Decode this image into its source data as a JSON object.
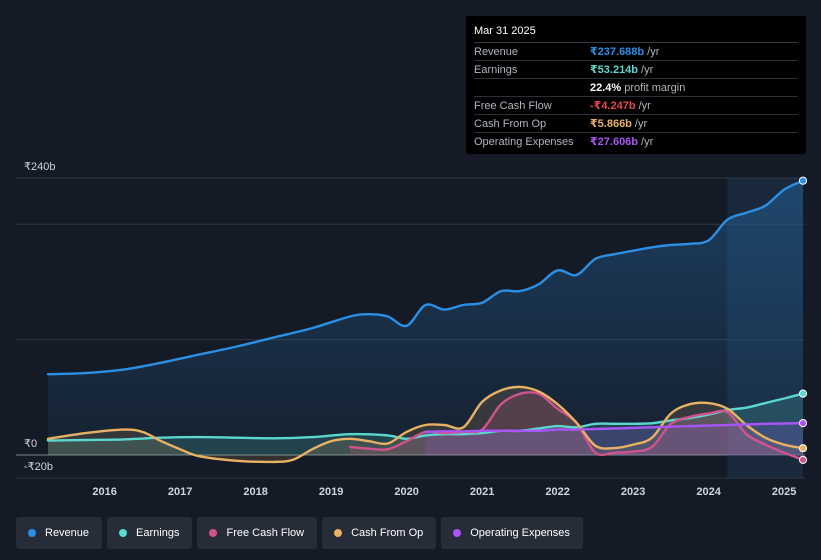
{
  "chart_data": {
    "type": "area",
    "currency_unit": "b",
    "y_labels": [
      {
        "value": 240,
        "label": "₹240b"
      },
      {
        "value": 0,
        "label": "₹0"
      },
      {
        "value": -20,
        "label": "-₹20b"
      }
    ],
    "ylim": [
      -20,
      240
    ],
    "xlim": [
      2015.25,
      2025.25
    ],
    "x_ticks": [
      {
        "value": 2016,
        "label": "2016"
      },
      {
        "value": 2017,
        "label": "2017"
      },
      {
        "value": 2018,
        "label": "2018"
      },
      {
        "value": 2019,
        "label": "2019"
      },
      {
        "value": 2020,
        "label": "2020"
      },
      {
        "value": 2021,
        "label": "2021"
      },
      {
        "value": 2022,
        "label": "2022"
      },
      {
        "value": 2023,
        "label": "2023"
      },
      {
        "value": 2024,
        "label": "2024"
      },
      {
        "value": 2025,
        "label": "2025"
      }
    ],
    "highlight_start": 2024.25,
    "series": [
      {
        "name": "Revenue",
        "color": "#2b8fe6",
        "x": [
          2015.25,
          2015.75,
          2016.25,
          2016.75,
          2017.25,
          2017.75,
          2018.25,
          2018.75,
          2019.25,
          2019.5,
          2019.75,
          2020.0,
          2020.25,
          2020.5,
          2020.75,
          2021.0,
          2021.25,
          2021.5,
          2021.75,
          2022.0,
          2022.25,
          2022.5,
          2022.75,
          2023.0,
          2023.25,
          2023.5,
          2023.75,
          2024.0,
          2024.25,
          2024.5,
          2024.75,
          2025.0,
          2025.25
        ],
        "y": [
          70,
          71,
          74,
          80,
          87,
          94,
          102,
          110,
          120,
          122,
          120,
          112,
          130,
          126,
          130,
          132,
          142,
          142,
          148,
          160,
          156,
          170,
          174,
          177,
          180,
          182,
          183,
          186,
          204,
          210,
          216,
          230,
          237.688
        ]
      },
      {
        "name": "Earnings",
        "color": "#5ad8cf",
        "x": [
          2015.25,
          2015.75,
          2016.25,
          2016.75,
          2017.25,
          2017.75,
          2018.25,
          2018.75,
          2019.25,
          2019.75,
          2020.0,
          2020.25,
          2020.5,
          2020.75,
          2021.0,
          2021.25,
          2021.5,
          2021.75,
          2022.0,
          2022.25,
          2022.5,
          2022.75,
          2023.0,
          2023.25,
          2023.5,
          2023.75,
          2024.0,
          2024.25,
          2024.5,
          2024.75,
          2025.0,
          2025.25
        ],
        "y": [
          12.5,
          13,
          13.5,
          15,
          15.5,
          15,
          14.5,
          15.5,
          18,
          17,
          14,
          17,
          18,
          18,
          19,
          21,
          21,
          23,
          25,
          24,
          27,
          27,
          27,
          27.5,
          30,
          32,
          35,
          39,
          41,
          45,
          49,
          53.214
        ]
      },
      {
        "name": "Free Cash Flow",
        "color": "#d1538e",
        "x": [
          2019.25,
          2019.5,
          2019.75,
          2020.0,
          2020.25,
          2020.5,
          2020.75,
          2021.0,
          2021.25,
          2021.5,
          2021.75,
          2022.0,
          2022.25,
          2022.5,
          2022.75,
          2023.0,
          2023.25,
          2023.5,
          2023.75,
          2024.0,
          2024.25,
          2024.5,
          2024.75,
          2025.0,
          2025.25
        ],
        "y": [
          7,
          5.5,
          5,
          12,
          20,
          19,
          20,
          22,
          44,
          53,
          53,
          40,
          28,
          2,
          2,
          3,
          7,
          27,
          33,
          36,
          37,
          18,
          9,
          2,
          -4.247
        ]
      },
      {
        "name": "Cash From Op",
        "color": "#e8b163",
        "x": [
          2015.25,
          2015.75,
          2016.25,
          2016.5,
          2016.75,
          2017.0,
          2017.25,
          2017.75,
          2018.25,
          2018.5,
          2018.75,
          2019.0,
          2019.25,
          2019.5,
          2019.75,
          2020.0,
          2020.25,
          2020.5,
          2020.75,
          2021.0,
          2021.25,
          2021.5,
          2021.75,
          2022.0,
          2022.25,
          2022.5,
          2022.75,
          2023.0,
          2023.25,
          2023.5,
          2023.75,
          2024.0,
          2024.25,
          2024.5,
          2024.75,
          2025.0,
          2025.25
        ],
        "y": [
          14,
          19,
          22,
          20,
          12,
          5,
          -1,
          -5,
          -6,
          -4,
          5,
          12,
          14,
          12,
          10,
          20,
          26,
          26,
          24,
          46,
          56,
          59,
          55,
          44,
          28,
          8,
          6,
          9,
          15,
          36,
          44,
          45,
          40,
          26,
          15,
          9,
          5.866
        ]
      },
      {
        "name": "Operating Expenses",
        "color": "#a855f7",
        "x": [
          2020.25,
          2020.5,
          2020.75,
          2021.0,
          2021.25,
          2021.5,
          2021.75,
          2022.0,
          2022.25,
          2022.5,
          2022.75,
          2023.0,
          2023.25,
          2023.5,
          2023.75,
          2024.0,
          2024.25,
          2024.5,
          2024.75,
          2025.0,
          2025.25
        ],
        "y": [
          20,
          20.5,
          20.5,
          21,
          21,
          21,
          21,
          22,
          22,
          22.5,
          23,
          23.5,
          24,
          24.5,
          25,
          25.5,
          26,
          26.5,
          27,
          27.3,
          27.606
        ]
      }
    ]
  },
  "tooltip": {
    "date": "Mar 31 2025",
    "rows": [
      {
        "label": "Revenue",
        "value": "₹237.688b",
        "unit": "/yr",
        "color": "#2b8fe6"
      },
      {
        "label": "Earnings",
        "value": "₹53.214b",
        "unit": "/yr",
        "color": "#5ad8cf"
      },
      {
        "label": "",
        "value": "22.4%",
        "unit": "profit margin",
        "color": "#ffffff"
      },
      {
        "label": "Free Cash Flow",
        "value": "-₹4.247b",
        "unit": "/yr",
        "color": "#e5484d"
      },
      {
        "label": "Cash From Op",
        "value": "₹5.866b",
        "unit": "/yr",
        "color": "#e8b163"
      },
      {
        "label": "Operating Expenses",
        "value": "₹27.606b",
        "unit": "/yr",
        "color": "#a855f7"
      }
    ]
  },
  "legend": [
    {
      "label": "Revenue",
      "color": "#2b8fe6"
    },
    {
      "label": "Earnings",
      "color": "#5ad8cf"
    },
    {
      "label": "Free Cash Flow",
      "color": "#d1538e"
    },
    {
      "label": "Cash From Op",
      "color": "#e8b163"
    },
    {
      "label": "Operating Expenses",
      "color": "#a855f7"
    }
  ]
}
